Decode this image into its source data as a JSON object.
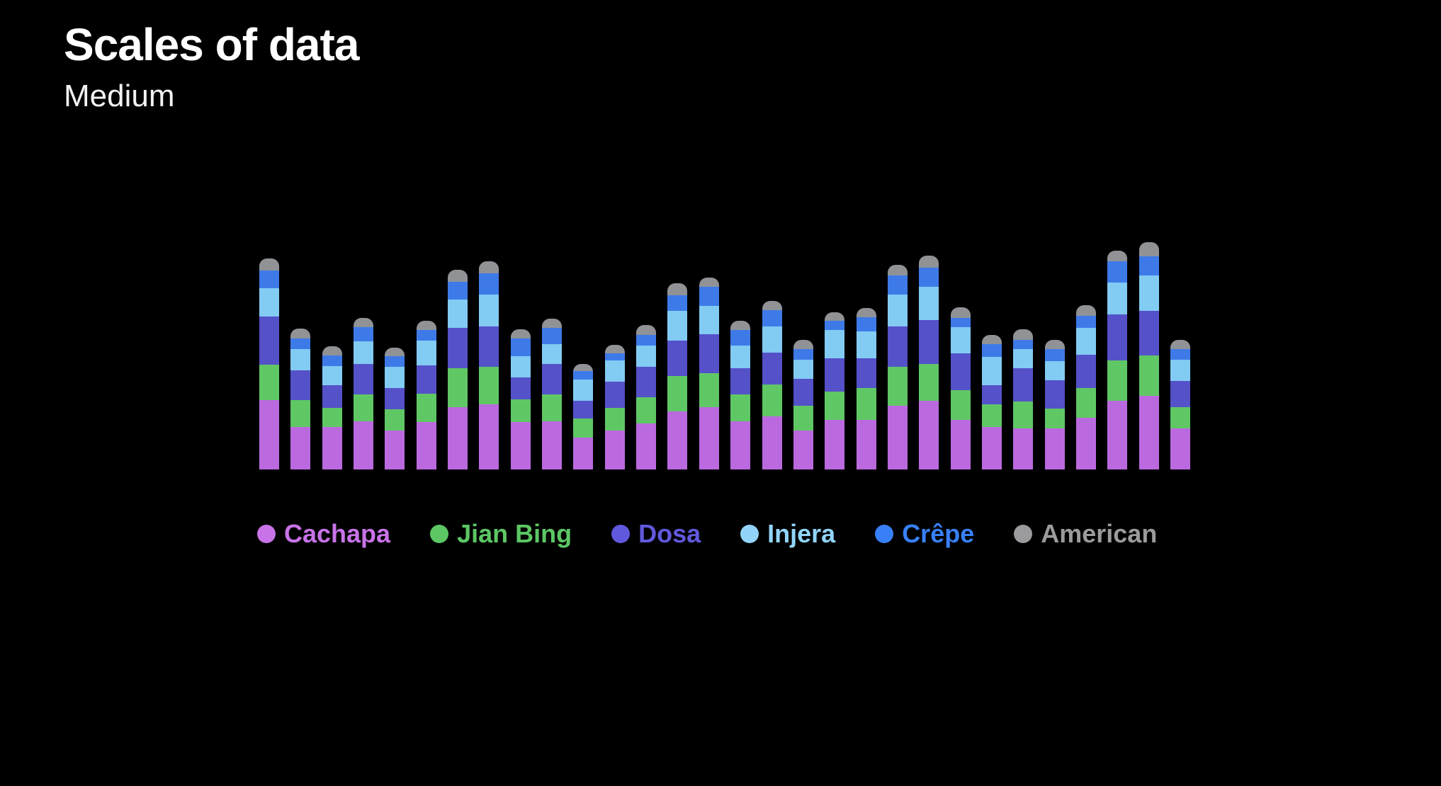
{
  "slide": {
    "title": "Scales of data",
    "subtitle": "Medium"
  },
  "colors": {
    "background": "#000000",
    "title_text": "#FFFFFF",
    "subtitle_text": "#F2F2F4"
  },
  "chart_data": {
    "type": "bar",
    "stacked": true,
    "orientation": "vertical",
    "title": "",
    "xlabel": "",
    "ylabel": "",
    "bar_count": 30,
    "x": [
      1,
      2,
      3,
      4,
      5,
      6,
      7,
      8,
      9,
      10,
      11,
      12,
      13,
      14,
      15,
      16,
      17,
      18,
      19,
      20,
      21,
      22,
      23,
      24,
      25,
      26,
      27,
      28,
      29,
      30
    ],
    "series": [
      {
        "name": "Cachapa",
        "color": "#BB69DF",
        "values": [
          98,
          60,
          60,
          68,
          55,
          67,
          88,
          92,
          67,
          68,
          45,
          55,
          65,
          82,
          88,
          68,
          75,
          55,
          70,
          70,
          90,
          97,
          70,
          60,
          58,
          58,
          73,
          97,
          104,
          58
        ]
      },
      {
        "name": "Jian Bing",
        "color": "#60C765",
        "values": [
          50,
          38,
          27,
          38,
          30,
          40,
          55,
          53,
          32,
          38,
          27,
          32,
          37,
          50,
          48,
          38,
          45,
          35,
          40,
          45,
          55,
          52,
          42,
          32,
          38,
          28,
          42,
          57,
          57,
          30
        ]
      },
      {
        "name": "Dosa",
        "color": "#5551C8",
        "values": [
          68,
          42,
          32,
          43,
          30,
          40,
          57,
          57,
          31,
          43,
          25,
          37,
          43,
          50,
          55,
          37,
          45,
          38,
          47,
          42,
          57,
          62,
          52,
          27,
          47,
          40,
          47,
          65,
          63,
          37
        ]
      },
      {
        "name": "Injera",
        "color": "#82CBF3",
        "values": [
          40,
          30,
          27,
          32,
          30,
          35,
          40,
          45,
          30,
          28,
          30,
          30,
          30,
          42,
          40,
          32,
          37,
          27,
          40,
          38,
          45,
          47,
          37,
          40,
          27,
          27,
          38,
          45,
          50,
          30
        ]
      },
      {
        "name": "Crêpe",
        "color": "#3D7AE8",
        "values": [
          25,
          15,
          15,
          20,
          15,
          15,
          25,
          30,
          25,
          23,
          12,
          10,
          15,
          22,
          27,
          22,
          23,
          15,
          13,
          20,
          27,
          27,
          13,
          18,
          13,
          17,
          17,
          30,
          27,
          15
        ]
      },
      {
        "name": "American",
        "color": "#909296",
        "values": [
          17,
          14,
          13,
          13,
          12,
          13,
          17,
          17,
          13,
          13,
          10,
          12,
          14,
          17,
          13,
          13,
          13,
          13,
          12,
          13,
          15,
          17,
          15,
          13,
          15,
          13,
          15,
          15,
          20,
          13
        ]
      }
    ],
    "value_unit": "relative",
    "ylim": [
      0,
      321
    ],
    "axes_visible": false,
    "gridlines": false,
    "tick_labels": "none",
    "legend_position": "bottom",
    "bar_corner_radius_top": 11
  },
  "legend": {
    "items": [
      {
        "label": "Cachapa",
        "color": "#C873E8"
      },
      {
        "label": "Jian Bing",
        "color": "#5CC764"
      },
      {
        "label": "Dosa",
        "color": "#6159DD"
      },
      {
        "label": "Injera",
        "color": "#92D4F9"
      },
      {
        "label": "Crêpe",
        "color": "#3880F7"
      },
      {
        "label": "American",
        "color": "#9B9B9D"
      }
    ]
  }
}
